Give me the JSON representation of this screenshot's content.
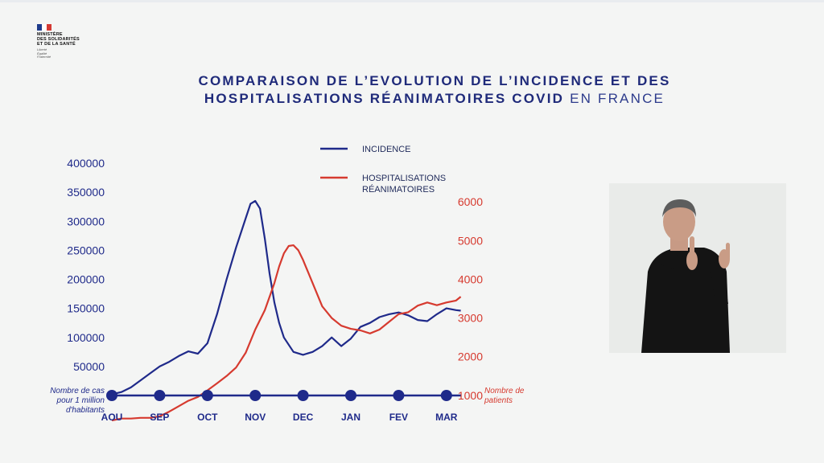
{
  "logo": {
    "lines": [
      "MINISTÈRE",
      "DES SOLIDARITÉS",
      "ET DE LA SANTÉ"
    ],
    "motto": [
      "Liberté",
      "Égalité",
      "Fraternité"
    ]
  },
  "title": {
    "line1": "COMPARAISON DE L’EVOLUTION DE L’INCIDENCE ET DES",
    "line2_bold": "HOSPITALISATIONS RÉANIMATOIRES COVID",
    "line2_light": "EN FRANCE"
  },
  "chart_data": {
    "type": "line",
    "x_categories": [
      "AOU",
      "SEP",
      "OCT",
      "NOV",
      "DEC",
      "JAN",
      "FEV",
      "MAR"
    ],
    "left_axis": {
      "label_lines": [
        "Nombre de cas",
        "pour 1 million",
        "d'habitants"
      ],
      "ticks": [
        50000,
        100000,
        150000,
        200000,
        250000,
        300000,
        350000,
        400000
      ],
      "ylim": [
        0,
        400000
      ],
      "color": "#1f2a8a"
    },
    "right_axis": {
      "label_lines": [
        "Nombre de",
        "patients"
      ],
      "ticks": [
        1000,
        2000,
        3000,
        4000,
        5000,
        6000
      ],
      "ylim": [
        0,
        6000
      ],
      "color": "#d63a2f"
    },
    "legend": {
      "position": "top-center",
      "items": [
        {
          "lines": [
            "INCIDENCE"
          ],
          "color": "#1f2a8a"
        },
        {
          "lines": [
            "HOSPITALISATIONS",
            "RÉANIMATOIRES"
          ],
          "color": "#d63a2f"
        }
      ]
    },
    "series": [
      {
        "name": "INCIDENCE",
        "axis": "left",
        "color": "#1f2a8a",
        "x": [
          0,
          0.2,
          0.4,
          0.6,
          0.8,
          1.0,
          1.2,
          1.4,
          1.6,
          1.8,
          2.0,
          2.2,
          2.4,
          2.6,
          2.8,
          2.9,
          3.0,
          3.1,
          3.2,
          3.3,
          3.4,
          3.5,
          3.6,
          3.8,
          4.0,
          4.2,
          4.4,
          4.6,
          4.8,
          5.0,
          5.2,
          5.4,
          5.6,
          5.8,
          6.0,
          6.2,
          6.4,
          6.6,
          6.8,
          7.0,
          7.2,
          7.3
        ],
        "values": [
          2000,
          6000,
          14000,
          26000,
          38000,
          50000,
          58000,
          68000,
          76000,
          72000,
          90000,
          140000,
          200000,
          255000,
          305000,
          330000,
          335000,
          322000,
          270000,
          210000,
          160000,
          125000,
          100000,
          75000,
          70000,
          75000,
          85000,
          100000,
          85000,
          98000,
          118000,
          125000,
          135000,
          140000,
          143000,
          138000,
          130000,
          128000,
          140000,
          150000,
          147000,
          146000
        ]
      },
      {
        "name": "HOSPITALISATIONS RÉANIMATOIRES",
        "axis": "right",
        "color": "#d63a2f",
        "x": [
          0,
          0.2,
          0.4,
          0.6,
          0.8,
          1.0,
          1.2,
          1.4,
          1.6,
          1.8,
          2.0,
          2.2,
          2.4,
          2.6,
          2.8,
          3.0,
          3.2,
          3.4,
          3.5,
          3.6,
          3.7,
          3.8,
          3.9,
          4.0,
          4.2,
          4.4,
          4.6,
          4.8,
          5.0,
          5.2,
          5.4,
          5.6,
          5.8,
          6.0,
          6.2,
          6.4,
          6.6,
          6.8,
          7.0,
          7.2,
          7.3
        ],
        "values": [
          350,
          400,
          400,
          420,
          420,
          460,
          580,
          720,
          860,
          960,
          1130,
          1310,
          1500,
          1720,
          2100,
          2700,
          3200,
          3900,
          4330,
          4670,
          4860,
          4880,
          4750,
          4500,
          3900,
          3300,
          3000,
          2800,
          2720,
          2680,
          2600,
          2700,
          2900,
          3100,
          3150,
          3320,
          3400,
          3330,
          3400,
          3450,
          3550
        ]
      }
    ]
  }
}
